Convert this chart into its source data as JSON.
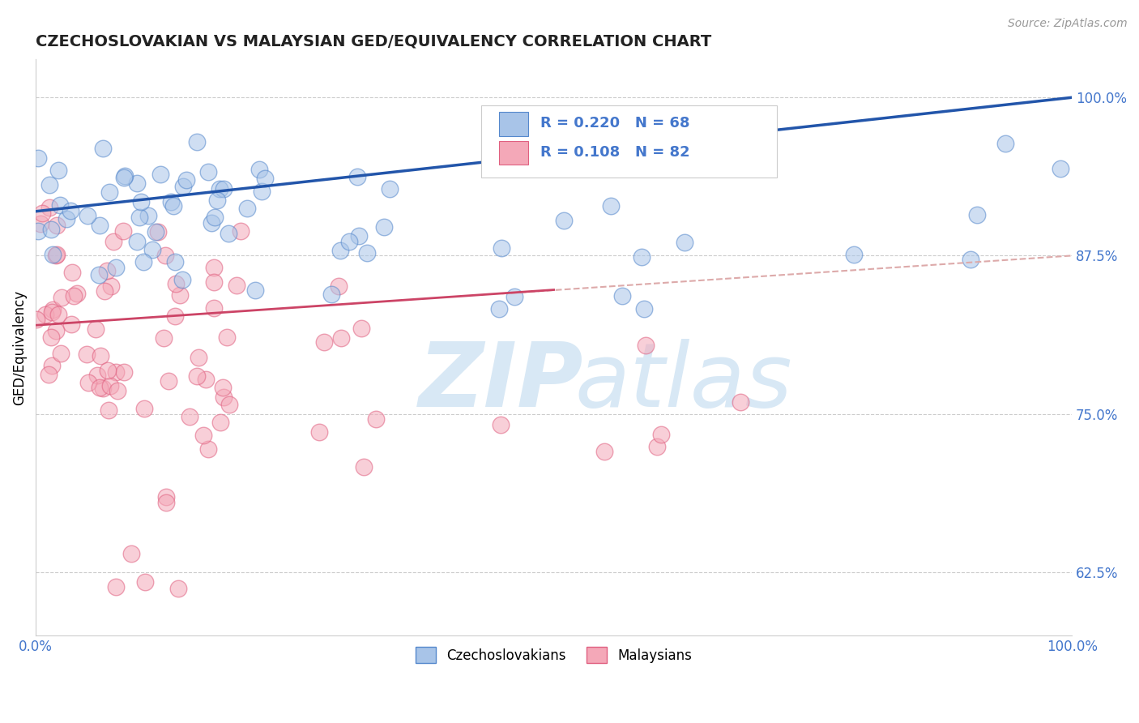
{
  "title": "CZECHOSLOVAKIAN VS MALAYSIAN GED/EQUIVALENCY CORRELATION CHART",
  "source": "Source: ZipAtlas.com",
  "ylabel": "GED/Equivalency",
  "yticks": [
    0.625,
    0.75,
    0.875,
    1.0
  ],
  "ytick_labels": [
    "62.5%",
    "75.0%",
    "87.5%",
    "100.0%"
  ],
  "xmin": 0.0,
  "xmax": 1.0,
  "ymin": 0.575,
  "ymax": 1.03,
  "blue_R": 0.22,
  "blue_N": 68,
  "pink_R": 0.108,
  "pink_N": 82,
  "blue_fill": "#A8C4E8",
  "blue_edge": "#5588CC",
  "pink_fill": "#F4A8B8",
  "pink_edge": "#E06080",
  "blue_line_color": "#2255AA",
  "pink_line_color": "#CC4466",
  "dashed_line_color": "#DDAAAA",
  "legend_label_blue": "Czechoslovakians",
  "legend_label_pink": "Malaysians",
  "watermark_text": "ZIP",
  "watermark_text2": "atlas",
  "watermark_color": "#D8E8F5",
  "title_color": "#222222",
  "axis_tick_color": "#4477CC",
  "blue_trend_x": [
    0.0,
    1.0
  ],
  "blue_trend_y": [
    0.91,
    1.0
  ],
  "pink_trend_x": [
    0.0,
    1.0
  ],
  "pink_trend_y": [
    0.82,
    0.875
  ]
}
